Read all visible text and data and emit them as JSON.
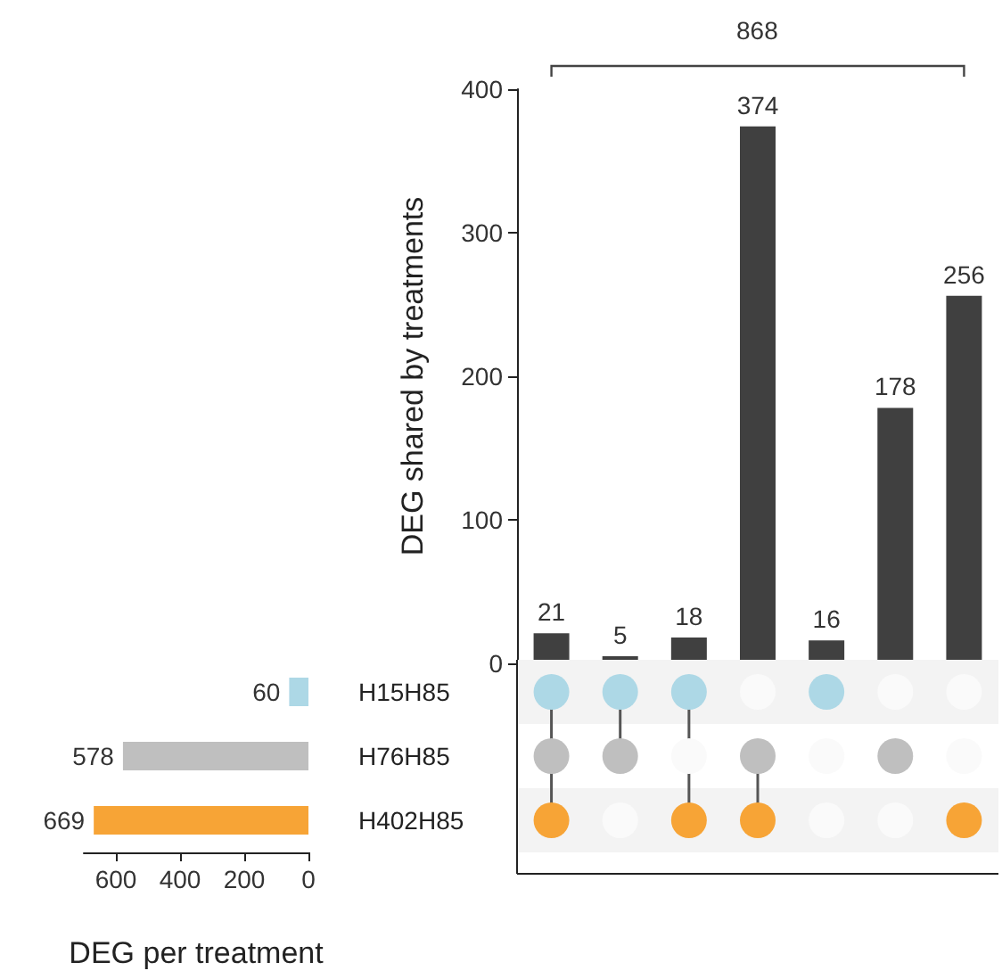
{
  "chart_data": [
    {
      "type": "bar",
      "categories": [
        null,
        null,
        null,
        null,
        null,
        null,
        null
      ],
      "values": [
        21,
        5,
        18,
        374,
        16,
        178,
        256
      ],
      "color": "#404040",
      "ylabel": "DEG shared by treatments",
      "ylim": [
        0,
        400
      ],
      "yticks": [
        0,
        100,
        200,
        300,
        400
      ],
      "data_labels": true,
      "grid": false,
      "annotations": [
        "868"
      ]
    },
    {
      "type": "bar",
      "orientation": "horizontal",
      "categories": [
        "H15H85",
        "H76H85",
        "H402H85"
      ],
      "values": [
        60,
        578,
        669
      ],
      "colors": [
        "#add8e6",
        "#bfbfbf",
        "#f7a436"
      ],
      "xlim": [
        700,
        0
      ],
      "xticks": [
        600,
        400,
        200,
        0
      ],
      "xlabel": "DEG per treatment",
      "data_labels": true,
      "grid": false
    }
  ]
}
